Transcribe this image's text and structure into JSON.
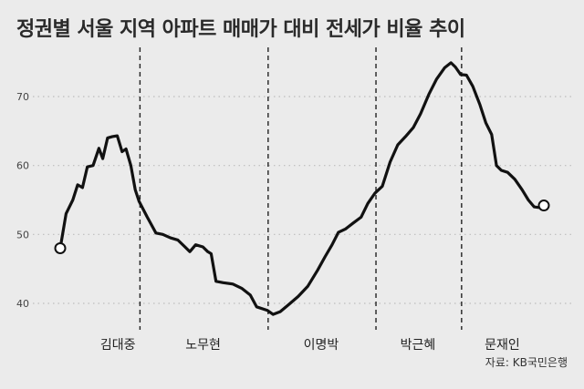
{
  "title": "정권별 서울 지역 아파트 매매가 대비 전세가 비율 추이",
  "source": "자료: KB국민은행",
  "chart_data": {
    "type": "line",
    "title": "정권별 서울 지역 아파트 매매가 대비 전세가 비율 추이",
    "xlabel": "",
    "ylabel": "",
    "ylim": [
      36,
      77
    ],
    "yticks": [
      40,
      50,
      60,
      70
    ],
    "grid": "horizontal-dotted",
    "legend": "none",
    "line_color": "#111111",
    "eras": [
      {
        "label": "김대중",
        "start": 0,
        "end": 0.163
      },
      {
        "label": "노무현",
        "start": 0.163,
        "end": 0.428
      },
      {
        "label": "이명박",
        "start": 0.428,
        "end": 0.651
      },
      {
        "label": "박근혜",
        "start": 0.651,
        "end": 0.828
      },
      {
        "label": "문재인",
        "start": 0.828,
        "end": 1.0
      }
    ],
    "series": [
      {
        "values": [
          [
            0.0,
            48.0
          ],
          [
            0.012,
            53.0
          ],
          [
            0.026,
            55.0
          ],
          [
            0.036,
            57.2
          ],
          [
            0.046,
            56.8
          ],
          [
            0.056,
            59.8
          ],
          [
            0.068,
            60.0
          ],
          [
            0.08,
            62.5
          ],
          [
            0.088,
            61.0
          ],
          [
            0.098,
            64.0
          ],
          [
            0.108,
            64.2
          ],
          [
            0.118,
            64.3
          ],
          [
            0.128,
            62.0
          ],
          [
            0.136,
            62.4
          ],
          [
            0.146,
            60.0
          ],
          [
            0.155,
            56.5
          ],
          [
            0.163,
            54.8
          ],
          [
            0.18,
            52.5
          ],
          [
            0.198,
            50.2
          ],
          [
            0.212,
            50.0
          ],
          [
            0.228,
            49.5
          ],
          [
            0.243,
            49.2
          ],
          [
            0.258,
            48.2
          ],
          [
            0.268,
            47.5
          ],
          [
            0.28,
            48.5
          ],
          [
            0.295,
            48.2
          ],
          [
            0.305,
            47.5
          ],
          [
            0.312,
            47.2
          ],
          [
            0.322,
            43.2
          ],
          [
            0.337,
            43.0
          ],
          [
            0.357,
            42.8
          ],
          [
            0.375,
            42.2
          ],
          [
            0.393,
            41.2
          ],
          [
            0.406,
            39.5
          ],
          [
            0.428,
            39.0
          ],
          [
            0.44,
            38.4
          ],
          [
            0.455,
            38.8
          ],
          [
            0.472,
            39.8
          ],
          [
            0.492,
            41.0
          ],
          [
            0.512,
            42.5
          ],
          [
            0.532,
            44.8
          ],
          [
            0.548,
            46.8
          ],
          [
            0.562,
            48.5
          ],
          [
            0.575,
            50.3
          ],
          [
            0.59,
            50.8
          ],
          [
            0.605,
            51.6
          ],
          [
            0.622,
            52.5
          ],
          [
            0.636,
            54.5
          ],
          [
            0.651,
            56.0
          ],
          [
            0.666,
            57.0
          ],
          [
            0.682,
            60.5
          ],
          [
            0.698,
            63.0
          ],
          [
            0.714,
            64.2
          ],
          [
            0.73,
            65.5
          ],
          [
            0.745,
            67.5
          ],
          [
            0.762,
            70.3
          ],
          [
            0.778,
            72.5
          ],
          [
            0.795,
            74.2
          ],
          [
            0.808,
            74.9
          ],
          [
            0.817,
            74.3
          ],
          [
            0.828,
            73.2
          ],
          [
            0.84,
            73.1
          ],
          [
            0.853,
            71.5
          ],
          [
            0.868,
            68.8
          ],
          [
            0.88,
            66.2
          ],
          [
            0.892,
            64.5
          ],
          [
            0.902,
            60.0
          ],
          [
            0.912,
            59.3
          ],
          [
            0.925,
            59.0
          ],
          [
            0.94,
            58.0
          ],
          [
            0.955,
            56.5
          ],
          [
            0.968,
            55.0
          ],
          [
            0.98,
            54.0
          ],
          [
            0.99,
            53.9
          ],
          [
            1.0,
            54.2
          ]
        ]
      }
    ]
  }
}
